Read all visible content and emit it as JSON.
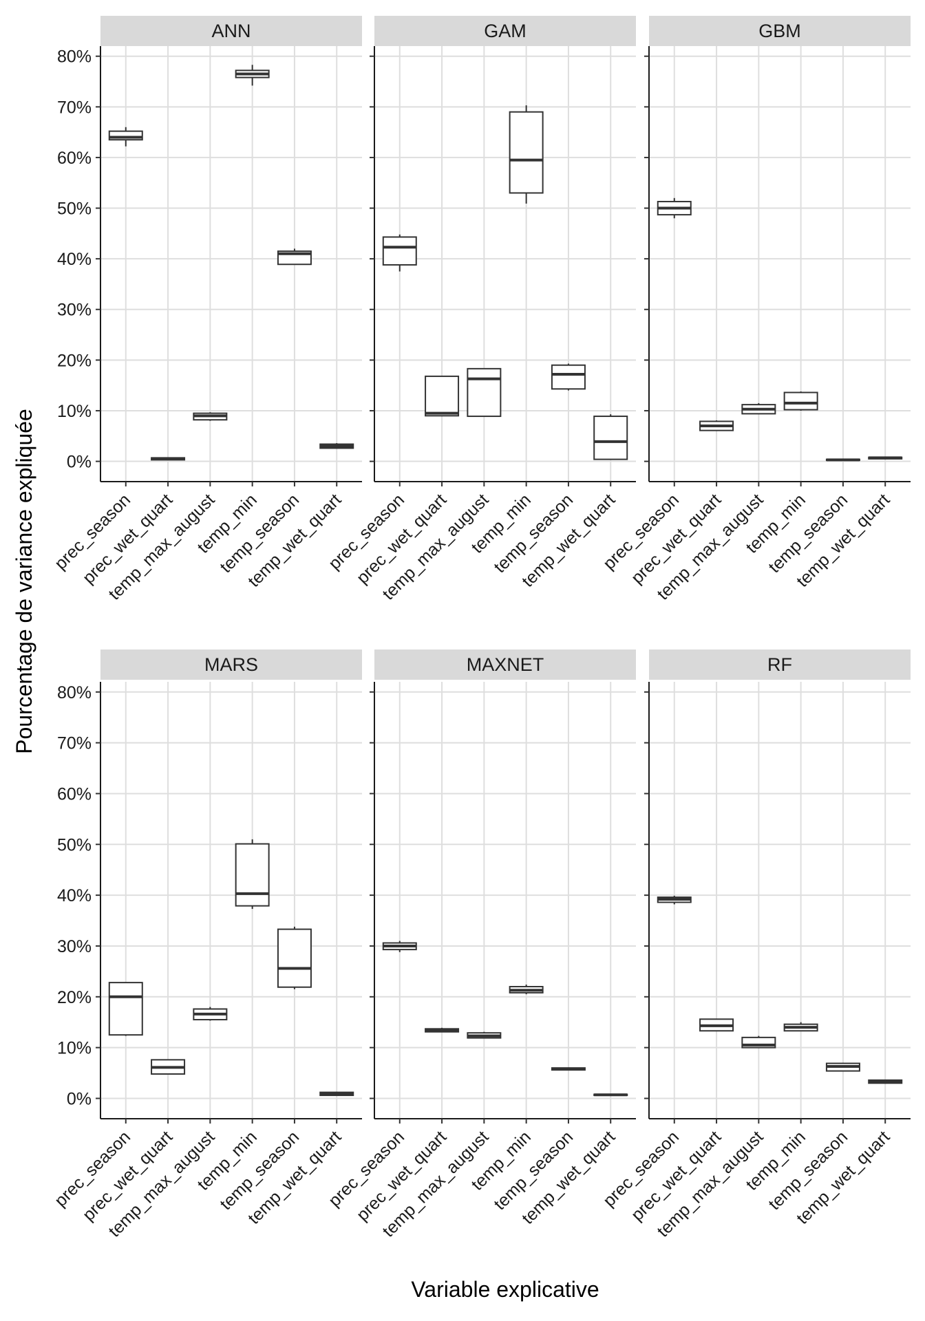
{
  "chart_data": {
    "type": "box",
    "xlabel": "Variable explicative",
    "ylabel": "Pourcentage de variance expliquée",
    "ylim": [
      -4,
      82
    ],
    "yticks": [
      0,
      10,
      20,
      30,
      40,
      50,
      60,
      70,
      80
    ],
    "ytick_labels": [
      "0%",
      "10%",
      "20%",
      "30%",
      "40%",
      "50%",
      "60%",
      "70%",
      "80%"
    ],
    "categories": [
      "prec_season",
      "prec_wet_quart",
      "temp_max_august",
      "temp_min",
      "temp_season",
      "temp_wet_quart"
    ],
    "grid": true,
    "panels": [
      {
        "title": "ANN",
        "boxes": [
          {
            "min": 62.2,
            "q1": 63.5,
            "median": 64.0,
            "q3": 65.2,
            "max": 66.0
          },
          {
            "min": 0.2,
            "q1": 0.3,
            "median": 0.5,
            "q3": 0.7,
            "max": 0.8
          },
          {
            "min": 8.0,
            "q1": 8.2,
            "median": 9.0,
            "q3": 9.5,
            "max": 9.7
          },
          {
            "min": 74.2,
            "q1": 75.8,
            "median": 76.5,
            "q3": 77.2,
            "max": 78.3
          },
          {
            "min": 38.9,
            "q1": 38.9,
            "median": 41.0,
            "q3": 41.5,
            "max": 42.0
          },
          {
            "min": 2.5,
            "q1": 2.6,
            "median": 3.0,
            "q3": 3.4,
            "max": 3.6
          }
        ]
      },
      {
        "title": "GAM",
        "boxes": [
          {
            "min": 37.5,
            "q1": 38.8,
            "median": 42.3,
            "q3": 44.3,
            "max": 44.8
          },
          {
            "min": 8.9,
            "q1": 9.0,
            "median": 9.5,
            "q3": 16.8,
            "max": 16.8
          },
          {
            "min": 8.8,
            "q1": 8.9,
            "median": 16.3,
            "q3": 18.3,
            "max": 18.3
          },
          {
            "min": 50.9,
            "q1": 53.0,
            "median": 59.5,
            "q3": 69.0,
            "max": 70.3
          },
          {
            "min": 14.0,
            "q1": 14.3,
            "median": 17.2,
            "q3": 19.0,
            "max": 19.3
          },
          {
            "min": 0.3,
            "q1": 0.4,
            "median": 3.9,
            "q3": 8.9,
            "max": 9.3
          }
        ]
      },
      {
        "title": "GBM",
        "boxes": [
          {
            "min": 48.0,
            "q1": 48.7,
            "median": 50.0,
            "q3": 51.3,
            "max": 52.0
          },
          {
            "min": 6.0,
            "q1": 6.1,
            "median": 7.0,
            "q3": 7.9,
            "max": 8.1
          },
          {
            "min": 9.3,
            "q1": 9.4,
            "median": 10.3,
            "q3": 11.2,
            "max": 11.5
          },
          {
            "min": 10.0,
            "q1": 10.2,
            "median": 11.5,
            "q3": 13.6,
            "max": 13.8
          },
          {
            "min": 0.1,
            "q1": 0.2,
            "median": 0.3,
            "q3": 0.4,
            "max": 0.5
          },
          {
            "min": 0.4,
            "q1": 0.5,
            "median": 0.7,
            "q3": 0.8,
            "max": 0.9
          }
        ]
      },
      {
        "title": "MARS",
        "boxes": [
          {
            "min": 12.3,
            "q1": 12.5,
            "median": 20.0,
            "q3": 22.8,
            "max": 22.8
          },
          {
            "min": 4.7,
            "q1": 4.8,
            "median": 6.1,
            "q3": 7.6,
            "max": 7.7
          },
          {
            "min": 15.3,
            "q1": 15.5,
            "median": 16.6,
            "q3": 17.6,
            "max": 18.0
          },
          {
            "min": 37.3,
            "q1": 37.9,
            "median": 40.3,
            "q3": 50.1,
            "max": 51.0
          },
          {
            "min": 21.5,
            "q1": 21.9,
            "median": 25.6,
            "q3": 33.3,
            "max": 33.8
          },
          {
            "min": 0.5,
            "q1": 0.6,
            "median": 0.9,
            "q3": 1.2,
            "max": 1.3
          }
        ]
      },
      {
        "title": "MAXNET",
        "boxes": [
          {
            "min": 28.8,
            "q1": 29.3,
            "median": 30.0,
            "q3": 30.6,
            "max": 31.0
          },
          {
            "min": 13.0,
            "q1": 13.1,
            "median": 13.4,
            "q3": 13.7,
            "max": 13.9
          },
          {
            "min": 11.8,
            "q1": 11.9,
            "median": 12.3,
            "q3": 12.9,
            "max": 13.1
          },
          {
            "min": 20.5,
            "q1": 20.8,
            "median": 21.3,
            "q3": 22.0,
            "max": 22.4
          },
          {
            "min": 5.5,
            "q1": 5.6,
            "median": 5.8,
            "q3": 6.0,
            "max": 6.1
          },
          {
            "min": 0.5,
            "q1": 0.6,
            "median": 0.7,
            "q3": 0.8,
            "max": 0.9
          }
        ]
      },
      {
        "title": "RF",
        "boxes": [
          {
            "min": 38.2,
            "q1": 38.6,
            "median": 39.2,
            "q3": 39.6,
            "max": 39.9
          },
          {
            "min": 13.2,
            "q1": 13.3,
            "median": 14.3,
            "q3": 15.6,
            "max": 15.6
          },
          {
            "min": 9.9,
            "q1": 10.0,
            "median": 10.5,
            "q3": 12.0,
            "max": 12.3
          },
          {
            "min": 13.2,
            "q1": 13.3,
            "median": 14.0,
            "q3": 14.6,
            "max": 15.0
          },
          {
            "min": 5.3,
            "q1": 5.4,
            "median": 6.3,
            "q3": 6.9,
            "max": 7.0
          },
          {
            "min": 2.9,
            "q1": 3.0,
            "median": 3.3,
            "q3": 3.6,
            "max": 3.7
          }
        ]
      }
    ]
  }
}
